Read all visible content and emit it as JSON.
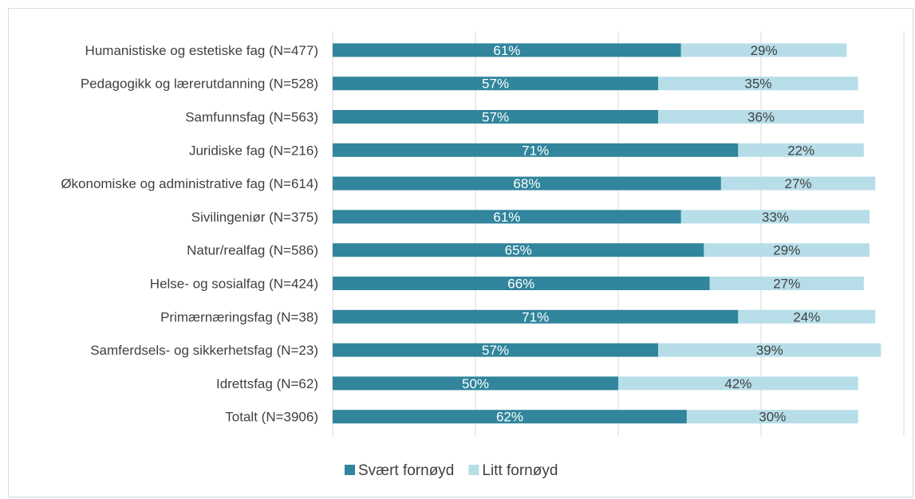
{
  "chart_data": {
    "type": "bar",
    "orientation": "horizontal",
    "stacked": true,
    "categories": [
      "Humanistiske og estetiske fag (N=477)",
      "Pedagogikk og lærerutdanning (N=528)",
      "Samfunnsfag (N=563)",
      "Juridiske fag (N=216)",
      "Økonomiske og administrative fag (N=614)",
      "Sivilingeniør (N=375)",
      "Natur/realfag (N=586)",
      "Helse- og sosialfag (N=424)",
      "Primærnæringsfag (N=38)",
      "Samferdsels- og sikkerhetsfag (N=23)",
      "Idrettsfag (N=62)",
      "Totalt (N=3906)"
    ],
    "series": [
      {
        "name": "Svært fornøyd",
        "color": "#31859c",
        "label_color": "#ffffff",
        "values": [
          61,
          57,
          57,
          71,
          68,
          61,
          65,
          66,
          71,
          57,
          50,
          62
        ],
        "labels": [
          "61%",
          "57%",
          "57%",
          "71%",
          "68%",
          "61%",
          "65%",
          "66%",
          "71%",
          "57%",
          "50%",
          "62%"
        ]
      },
      {
        "name": "Litt fornøyd",
        "color": "#b7dee8",
        "label_color": "#404040",
        "values": [
          29,
          35,
          36,
          22,
          27,
          33,
          29,
          27,
          24,
          39,
          42,
          30
        ],
        "labels": [
          "29%",
          "35%",
          "36%",
          "22%",
          "27%",
          "33%",
          "29%",
          "27%",
          "24%",
          "39%",
          "42%",
          "30%"
        ]
      }
    ],
    "xlim": [
      0,
      100
    ],
    "grid": true,
    "legend_position": "bottom"
  }
}
